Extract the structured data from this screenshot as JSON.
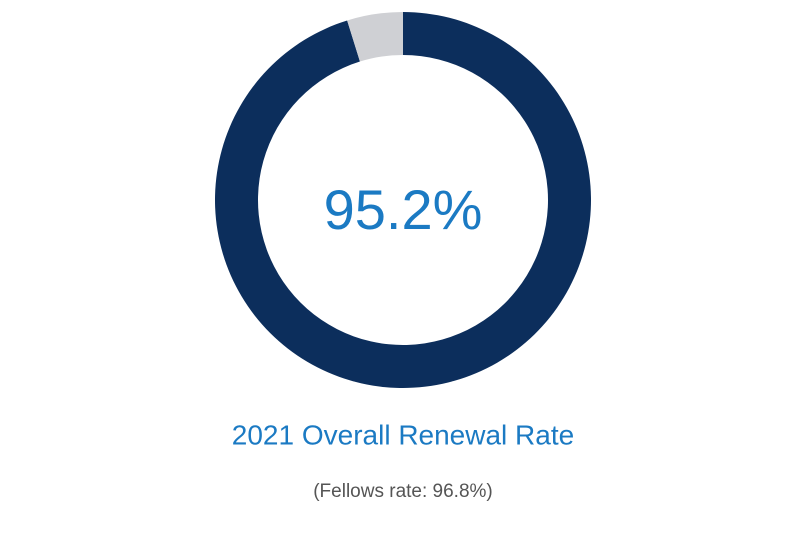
{
  "chart_data": {
    "type": "pie",
    "title": "2021 Overall Renewal Rate",
    "subtitle": "(Fellows rate: 96.8%)",
    "values": [
      95.2,
      4.8
    ],
    "value_labels": [
      "95.2%",
      null
    ],
    "colors": [
      "#0c2e5c",
      "#cfd0d4"
    ]
  }
}
